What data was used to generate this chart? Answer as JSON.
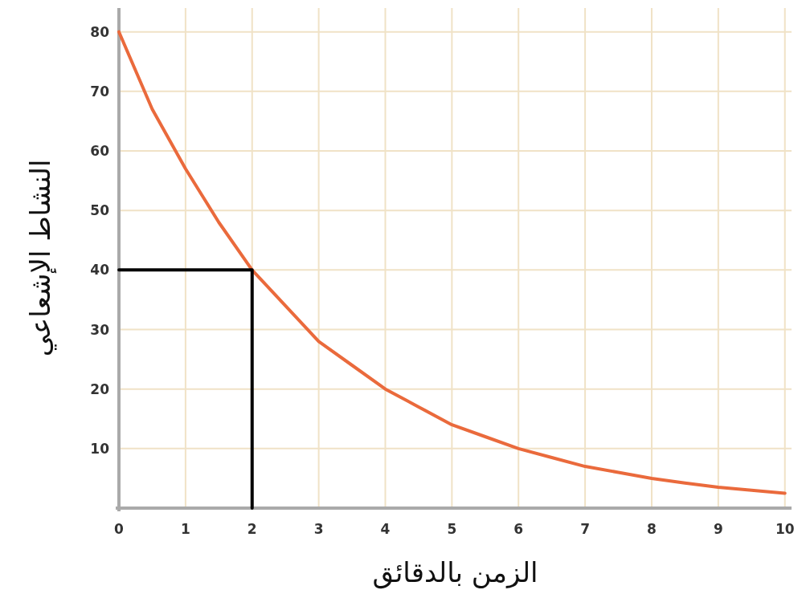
{
  "chart_data": {
    "type": "line",
    "xlabel": "الزمن بالدقائق",
    "ylabel": "النشاط الإشعاعي",
    "xlim": [
      0,
      10.1
    ],
    "ylim": [
      0,
      84
    ],
    "xticks": [
      0,
      1,
      2,
      3,
      4,
      5,
      6,
      7,
      8,
      9,
      10
    ],
    "yticks": [
      10,
      20,
      30,
      40,
      50,
      60,
      70,
      80
    ],
    "grid": true,
    "marker": "none",
    "line_style": "solid",
    "series": [
      {
        "color": "#ea6a3c",
        "x": [
          0,
          0.5,
          1,
          1.5,
          2,
          2.5,
          3,
          3.5,
          4,
          4.5,
          5,
          5.5,
          6,
          6.5,
          7,
          7.5,
          8,
          8.5,
          9,
          9.5,
          10
        ],
        "values": [
          80,
          67,
          57,
          48,
          40,
          34,
          28,
          24,
          20,
          17,
          14,
          12,
          10,
          8.5,
          7,
          6,
          5,
          4.2,
          3.5,
          3,
          2.5
        ]
      },
      {
        "color": "#000000",
        "x": [
          0,
          2,
          2
        ],
        "values": [
          40,
          40,
          0
        ]
      }
    ]
  }
}
